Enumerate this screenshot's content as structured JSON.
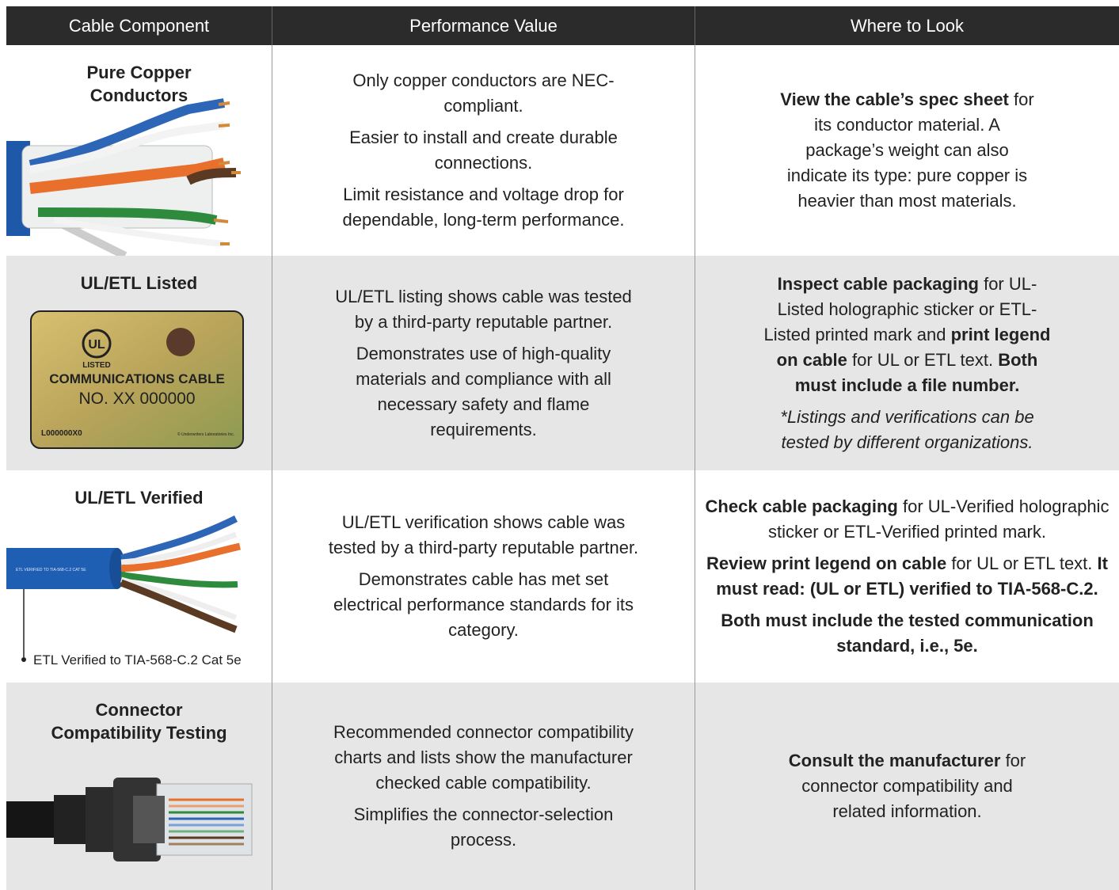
{
  "header": [
    "Cable Component",
    "Performance Value",
    "Where to Look"
  ],
  "rows": [
    {
      "component": {
        "title": "Pure Copper Conductors"
      },
      "performance": [
        [
          {
            "text": "Only copper conductors are NEC-compliant."
          }
        ],
        [
          {
            "text": "Easier to install and create durable connections."
          }
        ],
        [
          {
            "text": "Limit resistance and voltage drop for dependable, long-term performance."
          }
        ]
      ],
      "where": [
        [
          {
            "text": "View the cable’s spec sheet",
            "bold": true
          },
          {
            "text": " for its conductor material. A package’s weight can also indicate its type: pure copper is heavier than most materials."
          }
        ]
      ]
    },
    {
      "component": {
        "title": "UL/ETL Listed",
        "image_text": {
          "logo": "UL",
          "listed": "LISTED",
          "line1": "COMMUNICATIONS CABLE",
          "line2": "NO. XX 000000",
          "code": "L000000X0",
          "copyright": "© Underwriters Laboratories Inc."
        }
      },
      "performance": [
        [
          {
            "text": "UL/ETL listing shows cable was tested by a third-party reputable partner."
          }
        ],
        [
          {
            "text": "Demonstrates use of high-quality materials and compliance with all necessary safety and flame requirements."
          }
        ]
      ],
      "where": [
        [
          {
            "text": "Inspect cable packaging",
            "bold": true
          },
          {
            "text": " for UL-Listed holographic sticker or ETL-Listed printed mark and "
          },
          {
            "text": "print legend on cable",
            "bold": true
          },
          {
            "text": " for UL or ETL text. "
          },
          {
            "text": "Both must include a file number.",
            "bold": true
          }
        ],
        [
          {
            "text": "*Listings and verifications can be tested by different organizations.",
            "italic": true
          }
        ]
      ]
    },
    {
      "component": {
        "title": "UL/ETL Verified",
        "image_text": {
          "print": "ETL VERIFIED TO TIA-568-C.2 CAT 5E",
          "callout": "ETL Verified to TIA-568-C.2 Cat 5e"
        }
      },
      "performance": [
        [
          {
            "text": "UL/ETL verification shows cable was tested by a third-party reputable partner."
          }
        ],
        [
          {
            "text": "Demonstrates cable has met set electrical performance standards for its category."
          }
        ]
      ],
      "where": [
        [
          {
            "text": "Check cable packaging",
            "bold": true
          },
          {
            "text": " for UL-Verified holographic sticker or ETL-Verified printed mark."
          }
        ],
        [
          {
            "text": "Review print legend on cable",
            "bold": true
          },
          {
            "text": " for UL or ETL text. "
          },
          {
            "text": "It must read: (UL or ETL) verified to TIA-568-C.2.",
            "bold": true
          }
        ],
        [
          {
            "text": "Both must include the tested communication standard, i.e., 5e.",
            "bold": true
          }
        ]
      ]
    },
    {
      "component": {
        "title": "Connector Compatibility Testing"
      },
      "performance": [
        [
          {
            "text": "Recommended connector compatibility charts and lists show the manufacturer checked cable compatibility."
          }
        ],
        [
          {
            "text": "Simplifies the connector-selection process."
          }
        ]
      ],
      "where": [
        [
          {
            "text": "Consult the manufacturer",
            "bold": true
          },
          {
            "text": " for connector compatibility and related information."
          }
        ]
      ]
    }
  ]
}
